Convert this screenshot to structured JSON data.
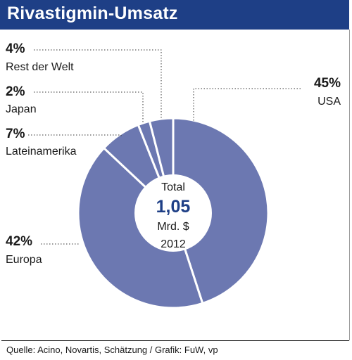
{
  "title": "Rivastigmin-Umsatz",
  "source": "Quelle: Acino, Novartis, Schätzung / Grafik: FuW, vp",
  "colors": {
    "header": "#1e3f86",
    "slice": "#6c78b1",
    "separator": "#ffffff",
    "center_accent": "#1e3f86"
  },
  "chart_data": {
    "type": "pie",
    "style": "donut",
    "slices": [
      {
        "name": "USA",
        "value": 45,
        "pct_label": "45%"
      },
      {
        "name": "Europa",
        "value": 42,
        "pct_label": "42%"
      },
      {
        "name": "Lateinamerika",
        "value": 7,
        "pct_label": "7%"
      },
      {
        "name": "Japan",
        "value": 2,
        "pct_label": "2%"
      },
      {
        "name": "Rest der Welt",
        "value": 4,
        "pct_label": "4%"
      }
    ],
    "center": {
      "line1": "Total",
      "value": "1,05",
      "line3": "Mrd. $",
      "line4": "2012"
    },
    "start": "top, clockwise"
  }
}
